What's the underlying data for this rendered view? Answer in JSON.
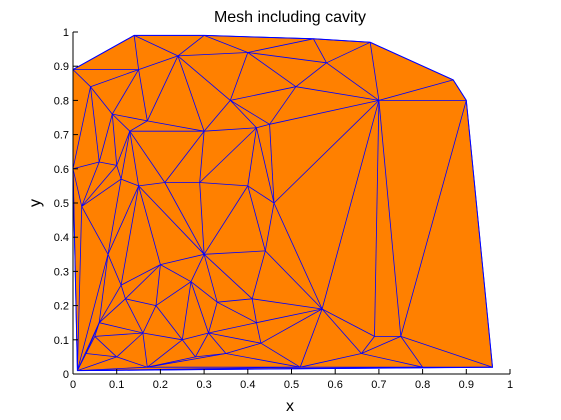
{
  "chart_data": {
    "type": "mesh",
    "title": "Mesh including cavity",
    "xlabel": "x",
    "ylabel": "y",
    "xlim": [
      0,
      1
    ],
    "ylim": [
      0,
      1
    ],
    "xticks": [
      "0",
      "0.1",
      "0.2",
      "0.3",
      "0.4",
      "0.5",
      "0.6",
      "0.7",
      "0.8",
      "0.9",
      "1"
    ],
    "yticks": [
      "0",
      "0.1",
      "0.2",
      "0.3",
      "0.4",
      "0.5",
      "0.6",
      "0.7",
      "0.8",
      "0.9",
      "1"
    ],
    "grid": false,
    "fill_color": "#ff8000",
    "edge_color": "#0000ff",
    "axes_color": "#000000",
    "background_color": "#ffffff",
    "boundary": [
      [
        0.0,
        0.89
      ],
      [
        0.14,
        0.99
      ],
      [
        0.3,
        0.99
      ],
      [
        0.55,
        0.98
      ],
      [
        0.68,
        0.97
      ],
      [
        0.87,
        0.86
      ],
      [
        0.9,
        0.8
      ],
      [
        0.96,
        0.02
      ],
      [
        0.01,
        0.01
      ],
      [
        0.0,
        0.6
      ]
    ],
    "nodes": [
      [
        0.0,
        0.89
      ],
      [
        0.14,
        0.99
      ],
      [
        0.3,
        0.99
      ],
      [
        0.55,
        0.98
      ],
      [
        0.68,
        0.97
      ],
      [
        0.87,
        0.86
      ],
      [
        0.9,
        0.8
      ],
      [
        0.96,
        0.02
      ],
      [
        0.01,
        0.01
      ],
      [
        0.0,
        0.6
      ],
      [
        0.15,
        0.89
      ],
      [
        0.24,
        0.93
      ],
      [
        0.4,
        0.94
      ],
      [
        0.58,
        0.91
      ],
      [
        0.51,
        0.84
      ],
      [
        0.7,
        0.8
      ],
      [
        0.04,
        0.84
      ],
      [
        0.09,
        0.76
      ],
      [
        0.17,
        0.74
      ],
      [
        0.3,
        0.71
      ],
      [
        0.42,
        0.72
      ],
      [
        0.45,
        0.73
      ],
      [
        0.36,
        0.8
      ],
      [
        0.13,
        0.71
      ],
      [
        0.06,
        0.62
      ],
      [
        0.1,
        0.61
      ],
      [
        0.15,
        0.55
      ],
      [
        0.21,
        0.56
      ],
      [
        0.29,
        0.56
      ],
      [
        0.4,
        0.55
      ],
      [
        0.46,
        0.5
      ],
      [
        0.11,
        0.57
      ],
      [
        0.3,
        0.35
      ],
      [
        0.11,
        0.26
      ],
      [
        0.2,
        0.32
      ],
      [
        0.27,
        0.27
      ],
      [
        0.19,
        0.2
      ],
      [
        0.33,
        0.21
      ],
      [
        0.41,
        0.22
      ],
      [
        0.44,
        0.36
      ],
      [
        0.57,
        0.19
      ],
      [
        0.43,
        0.09
      ],
      [
        0.52,
        0.02
      ],
      [
        0.66,
        0.06
      ],
      [
        0.69,
        0.11
      ],
      [
        0.75,
        0.11
      ],
      [
        0.8,
        0.02
      ],
      [
        0.12,
        0.22
      ],
      [
        0.05,
        0.11
      ],
      [
        0.17,
        0.02
      ],
      [
        0.28,
        0.05
      ],
      [
        0.35,
        0.06
      ],
      [
        0.42,
        0.15
      ],
      [
        0.31,
        0.12
      ],
      [
        0.16,
        0.12
      ],
      [
        0.1,
        0.05
      ],
      [
        0.25,
        0.1
      ],
      [
        0.03,
        0.06
      ],
      [
        0.06,
        0.15
      ],
      [
        0.08,
        0.35
      ],
      [
        0.02,
        0.49
      ]
    ],
    "triangles": [
      [
        0,
        10,
        1
      ],
      [
        10,
        11,
        1
      ],
      [
        1,
        11,
        2
      ],
      [
        11,
        12,
        2
      ],
      [
        2,
        12,
        3
      ],
      [
        12,
        13,
        3
      ],
      [
        3,
        13,
        4
      ],
      [
        13,
        15,
        4
      ],
      [
        4,
        15,
        5
      ],
      [
        15,
        6,
        5
      ],
      [
        0,
        16,
        10
      ],
      [
        16,
        17,
        10
      ],
      [
        17,
        18,
        10
      ],
      [
        10,
        18,
        11
      ],
      [
        18,
        19,
        11
      ],
      [
        11,
        19,
        22
      ],
      [
        11,
        22,
        12
      ],
      [
        22,
        14,
        12
      ],
      [
        12,
        14,
        13
      ],
      [
        14,
        15,
        13
      ],
      [
        22,
        21,
        14
      ],
      [
        21,
        15,
        14
      ],
      [
        19,
        20,
        22
      ],
      [
        20,
        21,
        22
      ],
      [
        0,
        9,
        16
      ],
      [
        16,
        24,
        17
      ],
      [
        9,
        24,
        16
      ],
      [
        17,
        23,
        18
      ],
      [
        17,
        24,
        25
      ],
      [
        17,
        25,
        23
      ],
      [
        23,
        19,
        18
      ],
      [
        23,
        27,
        19
      ],
      [
        23,
        25,
        31
      ],
      [
        23,
        31,
        26
      ],
      [
        23,
        26,
        27
      ],
      [
        27,
        28,
        19
      ],
      [
        28,
        20,
        19
      ],
      [
        28,
        29,
        20
      ],
      [
        29,
        30,
        20
      ],
      [
        20,
        30,
        21
      ],
      [
        21,
        30,
        15
      ],
      [
        30,
        40,
        15
      ],
      [
        40,
        44,
        15
      ],
      [
        44,
        45,
        15
      ],
      [
        45,
        6,
        15
      ],
      [
        45,
        7,
        6
      ],
      [
        45,
        46,
        7
      ],
      [
        9,
        60,
        24
      ],
      [
        24,
        60,
        25
      ],
      [
        25,
        60,
        31
      ],
      [
        31,
        60,
        59
      ],
      [
        31,
        59,
        26
      ],
      [
        26,
        59,
        33
      ],
      [
        26,
        33,
        34
      ],
      [
        26,
        34,
        32
      ],
      [
        26,
        32,
        27
      ],
      [
        27,
        32,
        28
      ],
      [
        28,
        32,
        29
      ],
      [
        32,
        39,
        29
      ],
      [
        39,
        30,
        29
      ],
      [
        39,
        40,
        30
      ],
      [
        33,
        47,
        34
      ],
      [
        47,
        36,
        34
      ],
      [
        36,
        35,
        34
      ],
      [
        35,
        32,
        34
      ],
      [
        35,
        37,
        32
      ],
      [
        37,
        38,
        32
      ],
      [
        38,
        39,
        32
      ],
      [
        38,
        40,
        39
      ],
      [
        38,
        52,
        40
      ],
      [
        52,
        41,
        40
      ],
      [
        41,
        42,
        40
      ],
      [
        42,
        43,
        40
      ],
      [
        43,
        44,
        40
      ],
      [
        43,
        45,
        44
      ],
      [
        43,
        46,
        45
      ],
      [
        42,
        46,
        43
      ],
      [
        9,
        8,
        60
      ],
      [
        60,
        8,
        59
      ],
      [
        59,
        8,
        58
      ],
      [
        59,
        58,
        33
      ],
      [
        58,
        47,
        33
      ],
      [
        58,
        54,
        47
      ],
      [
        54,
        36,
        47
      ],
      [
        54,
        56,
        36
      ],
      [
        56,
        35,
        36
      ],
      [
        56,
        53,
        35
      ],
      [
        53,
        37,
        35
      ],
      [
        53,
        52,
        37
      ],
      [
        52,
        38,
        37
      ],
      [
        53,
        41,
        52
      ],
      [
        53,
        51,
        41
      ],
      [
        51,
        42,
        41
      ],
      [
        8,
        57,
        58
      ],
      [
        57,
        48,
        58
      ],
      [
        48,
        54,
        58
      ],
      [
        48,
        55,
        54
      ],
      [
        55,
        49,
        54
      ],
      [
        49,
        56,
        54
      ],
      [
        49,
        50,
        56
      ],
      [
        50,
        53,
        56
      ],
      [
        50,
        51,
        53
      ],
      [
        8,
        55,
        57
      ],
      [
        55,
        48,
        57
      ],
      [
        8,
        49,
        55
      ],
      [
        49,
        51,
        50
      ],
      [
        49,
        42,
        51
      ],
      [
        8,
        42,
        49
      ],
      [
        8,
        46,
        42
      ],
      [
        8,
        7,
        46
      ]
    ]
  }
}
